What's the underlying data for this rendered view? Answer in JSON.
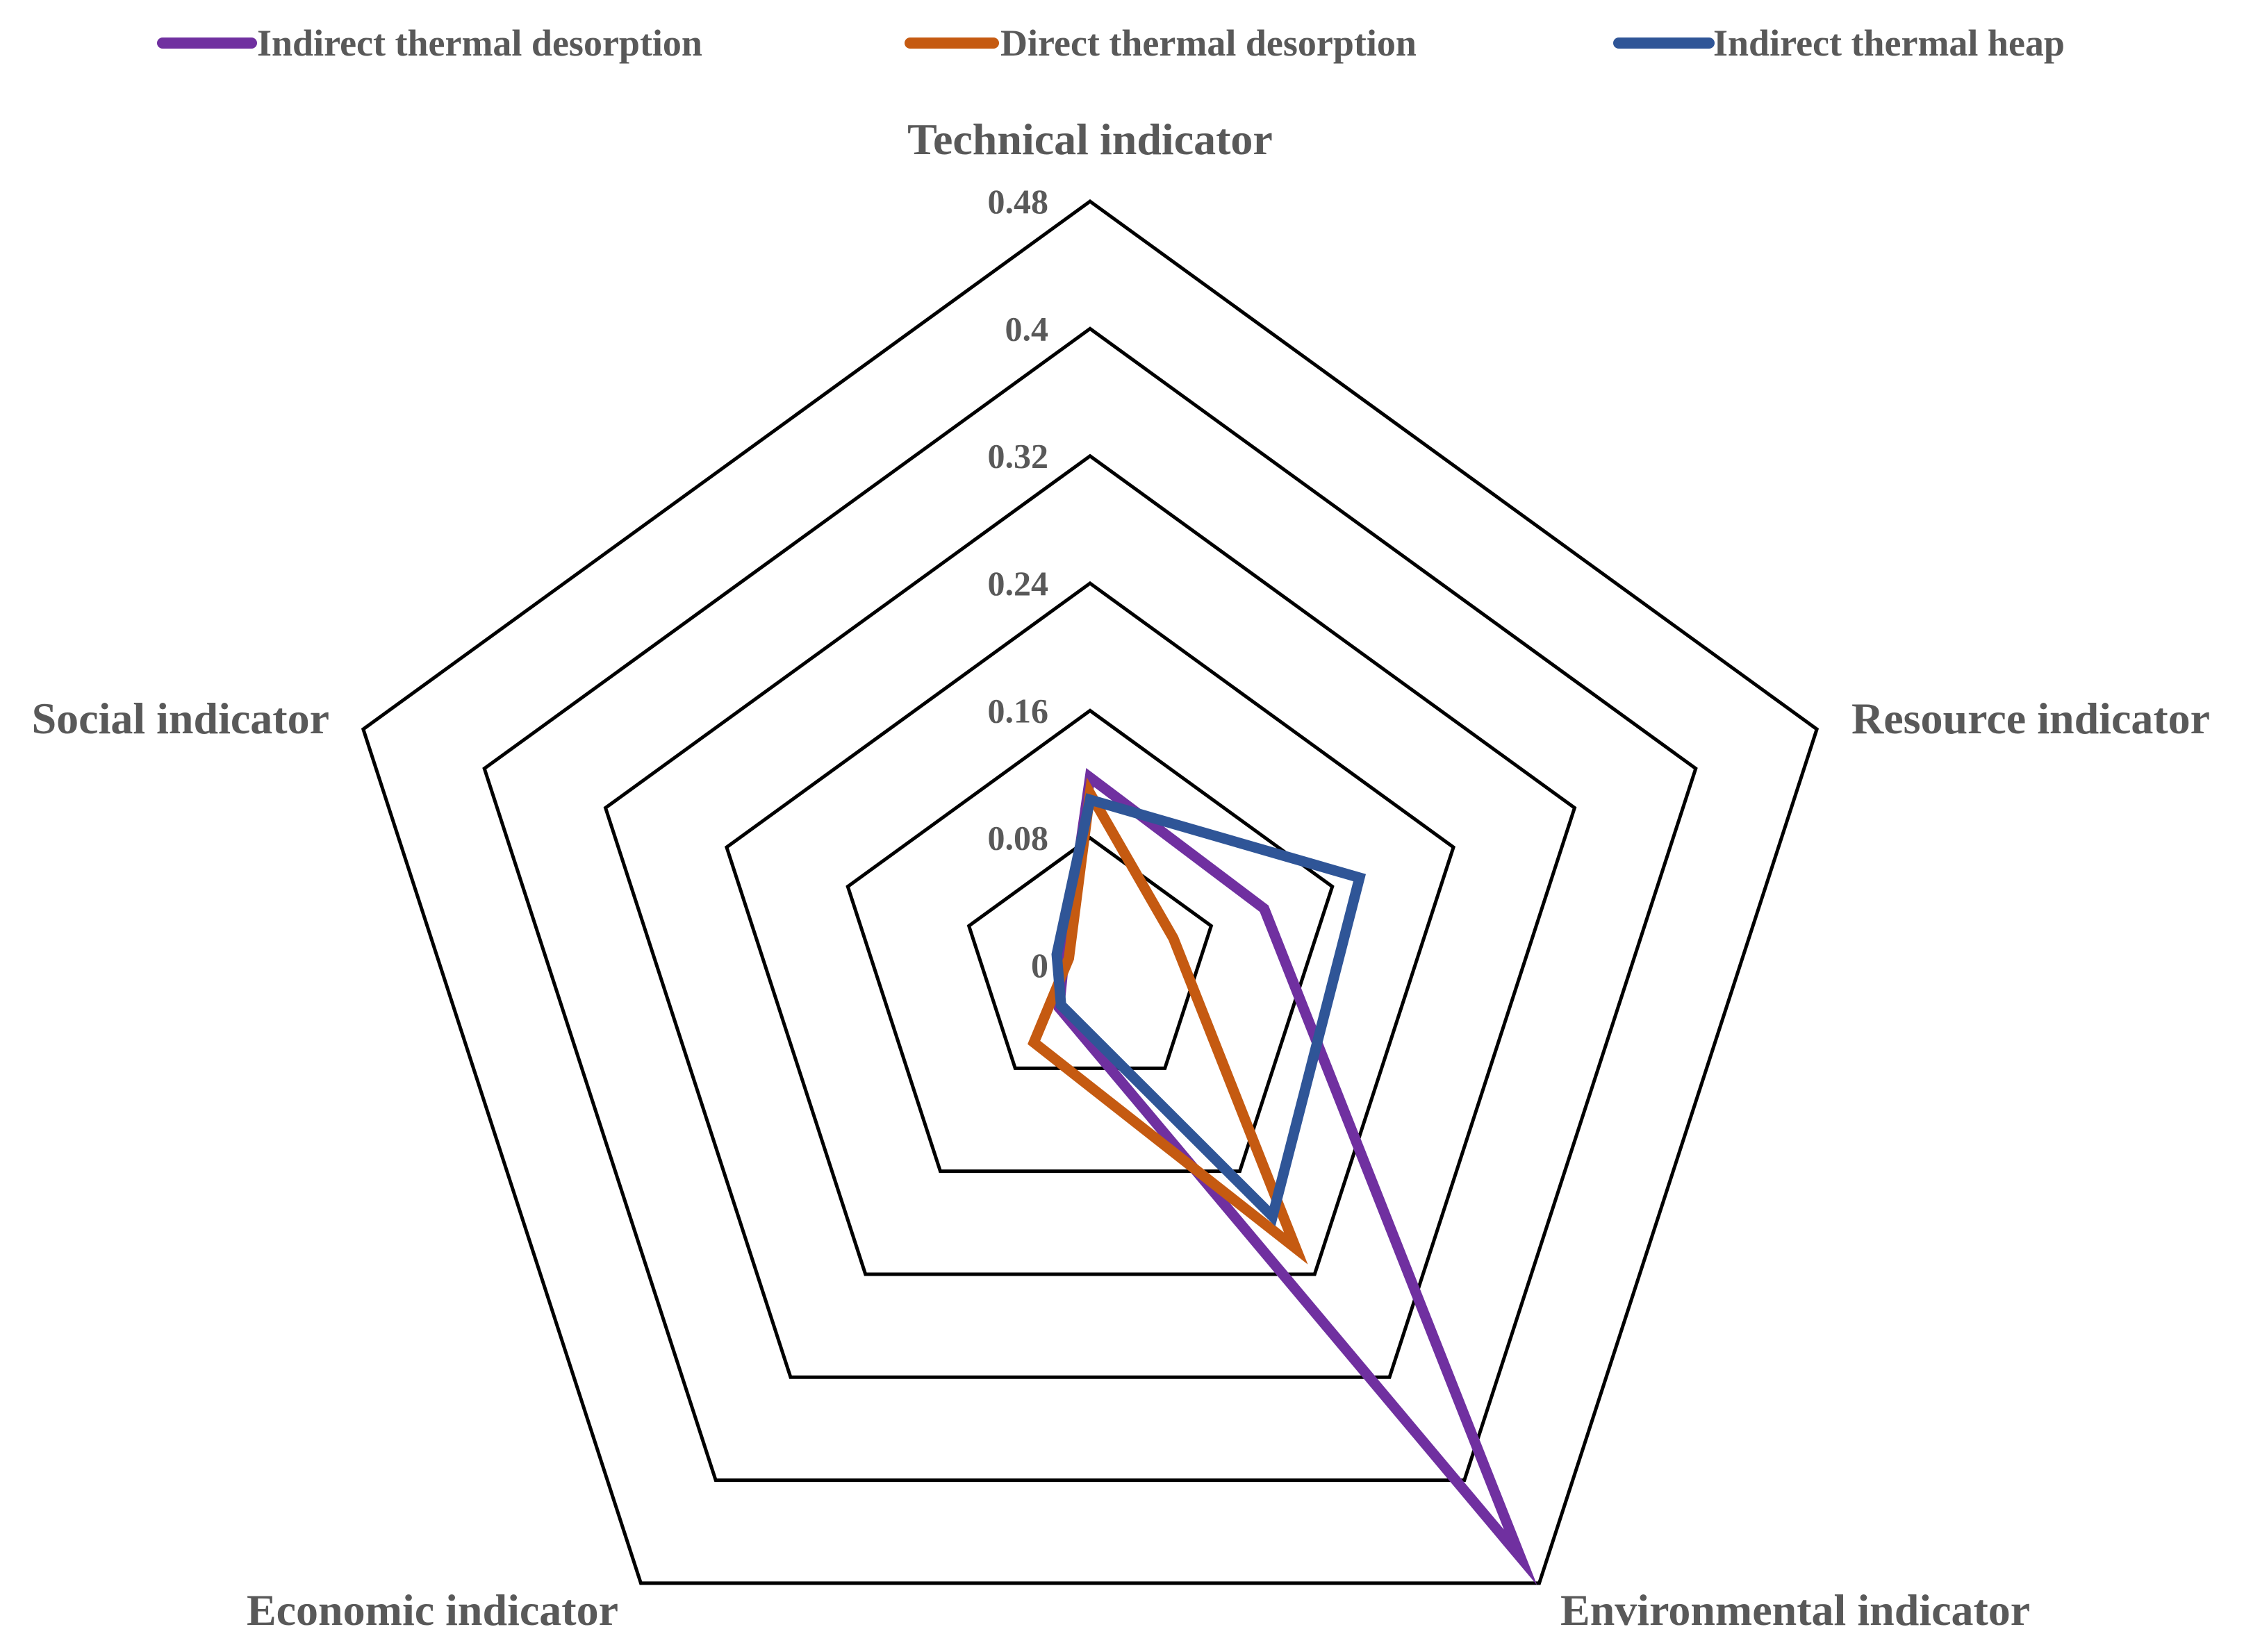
{
  "chart_data": {
    "type": "radar",
    "axes": [
      "Technical indicator",
      "Resource indicator",
      "Environmental indicator",
      "Economic indicator",
      "Social indicator"
    ],
    "radial_ticks": [
      "0",
      "0.08",
      "0.16",
      "0.24",
      "0.32",
      "0.4",
      "0.48"
    ],
    "rlim": [
      0,
      0.48
    ],
    "grid": true,
    "legend_position": "top",
    "series": [
      {
        "name": "Indirect thermal desorption",
        "color": "#7030A0",
        "values": [
          0.118,
          0.115,
          0.46,
          0.033,
          0.017
        ]
      },
      {
        "name": "Direct thermal desorption",
        "color": "#C55A11",
        "values": [
          0.108,
          0.055,
          0.22,
          0.06,
          0.014
        ]
      },
      {
        "name": "Indirect thermal heap",
        "color": "#2F5597",
        "values": [
          0.104,
          0.178,
          0.195,
          0.031,
          0.022
        ]
      }
    ]
  }
}
